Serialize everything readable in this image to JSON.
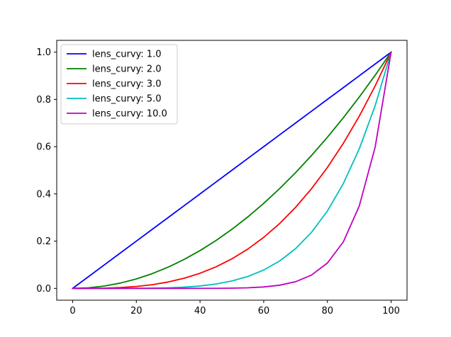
{
  "chart_data": {
    "type": "line",
    "title": "",
    "xlabel": "",
    "ylabel": "",
    "xlim": [
      -5,
      105
    ],
    "ylim": [
      -0.05,
      1.05
    ],
    "x_ticks": [
      0,
      20,
      40,
      60,
      80,
      100
    ],
    "y_ticks": [
      0.0,
      0.2,
      0.4,
      0.6,
      0.8,
      1.0
    ],
    "x_tick_labels": [
      "0",
      "20",
      "40",
      "60",
      "80",
      "100"
    ],
    "y_tick_labels": [
      "0.0",
      "0.2",
      "0.4",
      "0.6",
      "0.8",
      "1.0"
    ],
    "grid": false,
    "legend_position": "top-left",
    "x": [
      0,
      5,
      10,
      15,
      20,
      25,
      30,
      35,
      40,
      45,
      50,
      55,
      60,
      65,
      70,
      75,
      80,
      85,
      90,
      95,
      100
    ],
    "series": [
      {
        "name": "lens_curvy: 1.0",
        "color": "#0000ff",
        "values": [
          0.0,
          0.05,
          0.1,
          0.15,
          0.2,
          0.25,
          0.3,
          0.35,
          0.4,
          0.45,
          0.5,
          0.55,
          0.6,
          0.65,
          0.7,
          0.75,
          0.8,
          0.85,
          0.9,
          0.95,
          1.0
        ]
      },
      {
        "name": "lens_curvy: 2.0",
        "color": "#008000",
        "values": [
          0.0,
          0.0025,
          0.01,
          0.0225,
          0.04,
          0.0625,
          0.09,
          0.1225,
          0.16,
          0.2025,
          0.25,
          0.3025,
          0.36,
          0.4225,
          0.49,
          0.5625,
          0.64,
          0.7225,
          0.81,
          0.9025,
          1.0
        ]
      },
      {
        "name": "lens_curvy: 3.0",
        "color": "#ff0000",
        "values": [
          0.0,
          0.0001,
          0.001,
          0.0034,
          0.008,
          0.0156,
          0.027,
          0.0429,
          0.064,
          0.0911,
          0.125,
          0.1664,
          0.216,
          0.2746,
          0.343,
          0.4219,
          0.512,
          0.6141,
          0.729,
          0.8574,
          1.0
        ]
      },
      {
        "name": "lens_curvy: 5.0",
        "color": "#00bfbf",
        "values": [
          0.0,
          0.0,
          0.0,
          0.0001,
          0.0003,
          0.001,
          0.0024,
          0.0053,
          0.0102,
          0.0185,
          0.0313,
          0.0503,
          0.0778,
          0.116,
          0.1681,
          0.2373,
          0.3277,
          0.4437,
          0.5905,
          0.7738,
          1.0
        ]
      },
      {
        "name": "lens_curvy: 10.0",
        "color": "#bf00bf",
        "values": [
          0.0,
          0.0,
          0.0,
          0.0,
          0.0,
          0.0,
          0.0,
          0.0,
          0.0001,
          0.0003,
          0.001,
          0.0025,
          0.006,
          0.0135,
          0.0282,
          0.0563,
          0.1074,
          0.1969,
          0.3487,
          0.5987,
          1.0
        ]
      }
    ]
  }
}
